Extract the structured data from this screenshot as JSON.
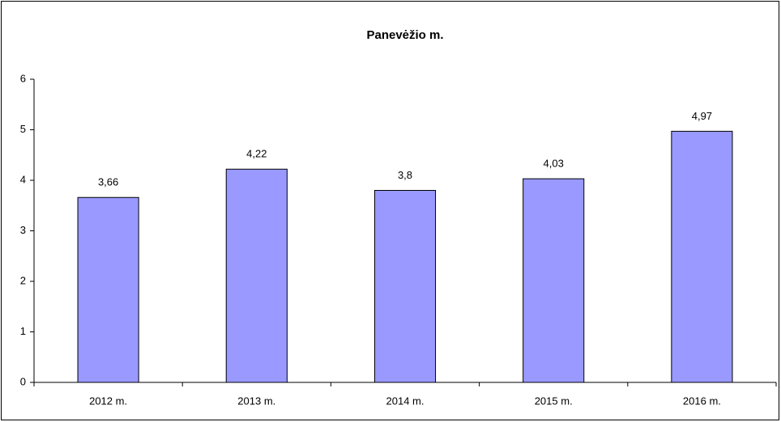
{
  "chart_data": {
    "type": "bar",
    "title": "Panevėžio m.",
    "categories": [
      "2012 m.",
      "2013 m.",
      "2014 m.",
      "2015 m.",
      "2016 m."
    ],
    "values": [
      3.66,
      4.22,
      3.8,
      4.03,
      4.97
    ],
    "value_labels": [
      "3,66",
      "4,22",
      "3,8",
      "4,03",
      "4,97"
    ],
    "color": "#9999ff",
    "ylim": [
      0,
      6
    ],
    "yticks": [
      0,
      1,
      2,
      3,
      4,
      5,
      6
    ],
    "grid": false
  }
}
